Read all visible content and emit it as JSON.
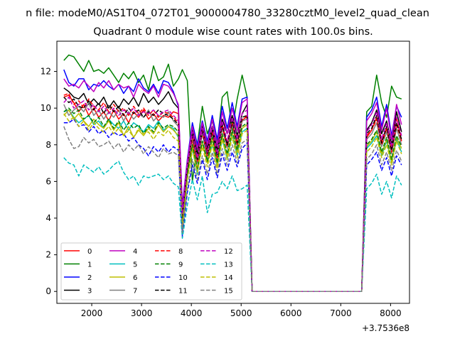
{
  "chart_data": {
    "type": "line",
    "suptitle": "n file: modeM0/AS1T04_072T01_9000004780_33280cztM0_level2_quad_clean",
    "title": "Quadrant 0 module wise count rates with 100.0s bins.",
    "xlabel": "",
    "ylabel": "",
    "x_offset_label": "+3.7536e8",
    "xlim": [
      1300,
      8380
    ],
    "ylim": [
      -0.65,
      13.65
    ],
    "x_ticks": [
      2000,
      3000,
      4000,
      5000,
      6000,
      7000,
      8000
    ],
    "x_tick_labels": [
      "2000",
      "3000",
      "4000",
      "5000",
      "6000",
      "7000",
      "8000"
    ],
    "y_ticks": [
      0,
      2,
      4,
      6,
      8,
      10,
      12
    ],
    "y_tick_labels": [
      "0",
      "2",
      "4",
      "6",
      "8",
      "10",
      "12"
    ],
    "legend": {
      "location": "lower-left",
      "columns": 4
    },
    "x": [
      1440,
      1540,
      1640,
      1740,
      1840,
      1940,
      2040,
      2140,
      2240,
      2340,
      2440,
      2540,
      2640,
      2740,
      2840,
      2940,
      3040,
      3140,
      3240,
      3340,
      3440,
      3540,
      3640,
      3740,
      3820,
      3920,
      4020,
      4120,
      4220,
      4320,
      4420,
      4520,
      4620,
      4720,
      4820,
      4920,
      5020,
      5120,
      5220,
      5320,
      7420,
      7520,
      7620,
      7720,
      7820,
      7920,
      8020,
      8120,
      8220
    ],
    "series": [
      {
        "name": "0",
        "color": "#ff0000",
        "dash": "solid",
        "values": [
          10.6,
          10.7,
          10.3,
          9.8,
          10.2,
          9.6,
          10.0,
          9.5,
          9.8,
          9.3,
          9.9,
          9.4,
          9.7,
          9.2,
          9.8,
          9.5,
          9.9,
          9.4,
          9.7,
          9.3,
          9.6,
          9.5,
          9.8,
          9.7,
          4.2,
          6.5,
          8.3,
          6.6,
          8.8,
          7.6,
          8.8,
          6.8,
          9.1,
          8.0,
          9.2,
          8.1,
          9.3,
          9.6,
          0.0,
          0.0,
          0.0,
          8.4,
          8.8,
          9.5,
          8.2,
          8.9,
          7.8,
          9.5,
          8.2
        ]
      },
      {
        "name": "1",
        "color": "#008000",
        "dash": "solid",
        "values": [
          12.6,
          12.9,
          12.8,
          12.4,
          12.0,
          12.6,
          12.0,
          12.1,
          11.9,
          12.2,
          11.8,
          11.4,
          11.9,
          11.6,
          12.0,
          11.4,
          11.8,
          11.0,
          12.3,
          11.5,
          11.7,
          12.4,
          11.2,
          11.6,
          12.1,
          11.5,
          6.0,
          8.0,
          10.1,
          8.6,
          9.3,
          8.1,
          10.6,
          10.9,
          8.8,
          10.5,
          11.8,
          10.6,
          0.0,
          0.0,
          0.0,
          9.8,
          10.1,
          11.8,
          10.3,
          9.5,
          11.2,
          10.6,
          10.5
        ]
      },
      {
        "name": "2",
        "color": "#0000ff",
        "dash": "solid",
        "values": [
          12.1,
          11.4,
          11.2,
          11.6,
          11.6,
          11.0,
          11.3,
          11.2,
          11.5,
          11.2,
          11.0,
          11.3,
          10.8,
          11.2,
          10.9,
          11.6,
          11.1,
          10.9,
          11.3,
          10.8,
          11.5,
          11.4,
          10.9,
          10.1,
          4.7,
          7.2,
          9.2,
          8.0,
          9.3,
          8.2,
          9.6,
          8.3,
          10.1,
          8.9,
          10.3,
          9.0,
          10.5,
          10.6,
          0.0,
          0.0,
          0.0,
          9.5,
          9.9,
          10.6,
          9.0,
          10.2,
          8.5,
          10.1,
          9.5
        ]
      },
      {
        "name": "3",
        "color": "#000000",
        "dash": "solid",
        "values": [
          11.1,
          10.9,
          10.6,
          10.5,
          10.8,
          10.2,
          10.5,
          10.2,
          10.6,
          10.0,
          10.4,
          10.0,
          10.5,
          10.2,
          10.6,
          10.1,
          10.8,
          10.3,
          10.6,
          10.2,
          10.5,
          10.9,
          10.3,
          10.0,
          4.3,
          7.0,
          8.8,
          7.5,
          9.1,
          7.8,
          9.0,
          7.7,
          9.4,
          8.6,
          9.6,
          8.5,
          9.7,
          10.2,
          0.0,
          0.0,
          0.0,
          8.8,
          9.2,
          9.9,
          8.6,
          9.3,
          8.0,
          9.8,
          8.7
        ]
      },
      {
        "name": "4",
        "color": "#bf00bf",
        "dash": "solid",
        "values": [
          11.6,
          11.2,
          11.3,
          11.1,
          11.5,
          11.2,
          10.9,
          11.4,
          11.1,
          11.5,
          11.0,
          11.3,
          11.1,
          11.2,
          10.6,
          11.3,
          11.0,
          10.8,
          11.2,
          10.6,
          11.3,
          11.2,
          10.8,
          10.2,
          4.6,
          7.1,
          9.0,
          7.8,
          9.2,
          8.0,
          9.4,
          8.0,
          9.8,
          8.6,
          10.0,
          8.8,
          10.3,
          10.5,
          0.0,
          0.0,
          0.0,
          9.3,
          9.7,
          10.3,
          8.8,
          10.0,
          8.3,
          10.2,
          9.1
        ]
      },
      {
        "name": "5",
        "color": "#00bfbf",
        "dash": "solid",
        "values": [
          9.8,
          9.9,
          9.5,
          9.2,
          9.4,
          9.6,
          9.1,
          9.3,
          8.9,
          9.4,
          9.1,
          8.9,
          9.3,
          8.8,
          9.2,
          9.0,
          8.7,
          9.1,
          8.9,
          9.3,
          8.8,
          9.0,
          8.9,
          8.4,
          3.3,
          6.2,
          7.8,
          6.4,
          8.2,
          7.0,
          8.0,
          6.8,
          8.3,
          7.2,
          8.6,
          7.4,
          8.7,
          8.9,
          0.0,
          0.0,
          0.0,
          7.8,
          8.1,
          8.5,
          7.4,
          8.2,
          7.0,
          8.3,
          7.6
        ]
      },
      {
        "name": "6",
        "color": "#bfbf00",
        "dash": "solid",
        "values": [
          9.6,
          9.9,
          9.4,
          9.7,
          9.3,
          9.0,
          9.4,
          9.1,
          8.9,
          9.3,
          8.8,
          9.2,
          8.5,
          9.0,
          8.4,
          8.8,
          8.5,
          8.9,
          8.6,
          9.1,
          8.7,
          9.0,
          8.8,
          8.5,
          3.6,
          6.3,
          7.9,
          6.6,
          8.1,
          7.0,
          8.3,
          6.9,
          8.5,
          7.4,
          8.7,
          7.6,
          8.9,
          9.1,
          0.0,
          0.0,
          0.0,
          7.9,
          8.2,
          8.7,
          7.5,
          8.3,
          7.1,
          8.4,
          7.8
        ]
      },
      {
        "name": "7",
        "color": "#808080",
        "dash": "solid",
        "values": [
          10.2,
          9.6,
          9.9,
          10.1,
          9.8,
          10.3,
          9.6,
          9.9,
          9.4,
          9.8,
          9.5,
          9.9,
          9.3,
          9.8,
          9.4,
          9.7,
          9.5,
          9.9,
          9.3,
          9.6,
          9.5,
          9.8,
          9.3,
          9.0,
          3.9,
          6.6,
          8.4,
          7.0,
          8.6,
          7.3,
          8.6,
          7.2,
          8.9,
          7.8,
          9.1,
          7.9,
          9.3,
          9.4,
          0.0,
          0.0,
          0.0,
          8.3,
          8.6,
          9.2,
          7.9,
          8.7,
          7.5,
          8.9,
          8.0
        ]
      },
      {
        "name": "8",
        "color": "#ff0000",
        "dash": "dash",
        "values": [
          10.7,
          10.8,
          10.2,
          10.4,
          10.0,
          10.5,
          10.1,
          9.9,
          10.3,
          9.8,
          10.2,
          9.8,
          10.0,
          9.6,
          10.1,
          9.7,
          10.0,
          9.6,
          9.9,
          9.5,
          9.8,
          9.7,
          9.5,
          9.2,
          4.0,
          6.7,
          8.5,
          7.1,
          8.7,
          7.4,
          8.7,
          7.3,
          9.0,
          7.9,
          9.2,
          8.0,
          9.4,
          9.5,
          0.0,
          0.0,
          0.0,
          8.5,
          8.8,
          9.4,
          8.0,
          8.9,
          7.6,
          9.1,
          8.2
        ]
      },
      {
        "name": "9",
        "color": "#008000",
        "dash": "dash",
        "values": [
          9.8,
          10.0,
          9.7,
          9.9,
          9.4,
          9.6,
          9.2,
          9.5,
          9.0,
          9.4,
          8.9,
          9.3,
          8.8,
          9.2,
          8.9,
          9.1,
          8.6,
          9.0,
          8.7,
          9.2,
          8.9,
          9.1,
          9.0,
          8.7,
          3.7,
          6.4,
          8.0,
          6.7,
          8.2,
          7.1,
          8.4,
          7.0,
          8.6,
          7.5,
          8.8,
          7.7,
          9.0,
          9.2,
          0.0,
          0.0,
          0.0,
          8.0,
          8.3,
          8.8,
          7.6,
          8.4,
          7.2,
          8.5,
          7.9
        ]
      },
      {
        "name": "10",
        "color": "#0000ff",
        "dash": "dash",
        "values": [
          9.2,
          9.2,
          9.4,
          9.0,
          9.1,
          8.7,
          9.0,
          8.6,
          8.8,
          8.4,
          8.7,
          8.5,
          8.6,
          8.2,
          8.4,
          8.0,
          7.8,
          7.4,
          7.9,
          7.6,
          8.0,
          7.6,
          7.9,
          7.7,
          3.0,
          5.4,
          6.9,
          5.9,
          7.2,
          6.1,
          7.3,
          6.2,
          7.5,
          6.6,
          7.6,
          6.8,
          7.8,
          8.1,
          0.0,
          0.0,
          0.0,
          6.9,
          7.2,
          7.6,
          6.6,
          7.3,
          6.3,
          7.4,
          6.9
        ]
      },
      {
        "name": "11",
        "color": "#000000",
        "dash": "dash",
        "values": [
          10.6,
          10.3,
          10.5,
          10.1,
          10.0,
          10.4,
          9.9,
          10.3,
          9.7,
          10.2,
          9.8,
          10.1,
          9.6,
          10.0,
          9.7,
          9.9,
          9.5,
          9.8,
          9.6,
          9.9,
          9.7,
          9.6,
          9.4,
          9.1,
          4.1,
          6.8,
          8.6,
          7.2,
          8.8,
          7.5,
          8.8,
          7.4,
          9.1,
          8.0,
          9.3,
          8.1,
          9.5,
          9.6,
          0.0,
          0.0,
          0.0,
          8.6,
          8.9,
          9.6,
          8.1,
          9.0,
          7.7,
          9.2,
          8.3
        ]
      },
      {
        "name": "12",
        "color": "#bf00bf",
        "dash": "dash",
        "values": [
          10.3,
          10.6,
          10.0,
          10.2,
          10.4,
          9.9,
          10.2,
          9.8,
          10.1,
          9.7,
          10.0,
          9.6,
          9.9,
          9.7,
          10.0,
          9.6,
          9.8,
          9.7,
          9.9,
          9.6,
          9.8,
          9.9,
          9.6,
          9.3,
          4.2,
          6.9,
          8.7,
          7.3,
          8.9,
          7.6,
          9.0,
          7.5,
          9.3,
          8.2,
          9.5,
          8.3,
          9.7,
          9.9,
          0.0,
          0.0,
          0.0,
          8.7,
          9.1,
          9.8,
          8.3,
          9.2,
          7.9,
          9.5,
          8.5
        ]
      },
      {
        "name": "13",
        "color": "#00bfbf",
        "dash": "dash",
        "values": [
          7.3,
          7.0,
          6.9,
          6.3,
          6.9,
          6.7,
          6.5,
          6.8,
          6.4,
          6.6,
          6.9,
          7.1,
          6.5,
          6.1,
          6.3,
          5.8,
          6.3,
          6.2,
          6.3,
          6.4,
          6.1,
          6.3,
          5.9,
          5.7,
          2.9,
          4.7,
          6.1,
          5.0,
          6.3,
          4.3,
          5.3,
          5.4,
          6.0,
          5.6,
          6.3,
          5.5,
          5.6,
          5.8,
          0.0,
          0.0,
          0.0,
          5.6,
          5.9,
          6.4,
          5.3,
          6.0,
          5.1,
          6.3,
          5.8
        ]
      },
      {
        "name": "14",
        "color": "#bfbf00",
        "dash": "dash",
        "values": [
          9.7,
          9.3,
          9.5,
          9.0,
          9.3,
          8.8,
          9.2,
          8.9,
          8.7,
          9.0,
          8.6,
          8.9,
          8.5,
          8.8,
          8.4,
          8.9,
          8.6,
          8.7,
          8.3,
          8.7,
          8.5,
          8.8,
          8.4,
          8.2,
          3.5,
          6.1,
          7.7,
          6.5,
          7.9,
          6.8,
          8.0,
          6.7,
          8.3,
          7.2,
          8.4,
          7.3,
          8.6,
          8.8,
          0.0,
          0.0,
          0.0,
          7.6,
          7.9,
          8.4,
          7.3,
          8.0,
          6.9,
          8.2,
          7.5
        ]
      },
      {
        "name": "15",
        "color": "#808080",
        "dash": "dash",
        "values": [
          9.0,
          8.3,
          7.8,
          7.9,
          8.4,
          8.1,
          8.3,
          7.9,
          8.0,
          8.2,
          7.8,
          8.1,
          7.6,
          8.0,
          7.7,
          8.0,
          7.5,
          7.9,
          7.6,
          7.3,
          7.8,
          7.5,
          7.6,
          7.4,
          3.2,
          5.6,
          7.2,
          6.1,
          7.4,
          6.4,
          7.6,
          6.4,
          7.8,
          6.9,
          8.0,
          7.0,
          8.1,
          8.3,
          0.0,
          0.0,
          0.0,
          7.2,
          7.5,
          8.0,
          6.9,
          7.6,
          6.6,
          7.7,
          7.1
        ]
      }
    ]
  }
}
